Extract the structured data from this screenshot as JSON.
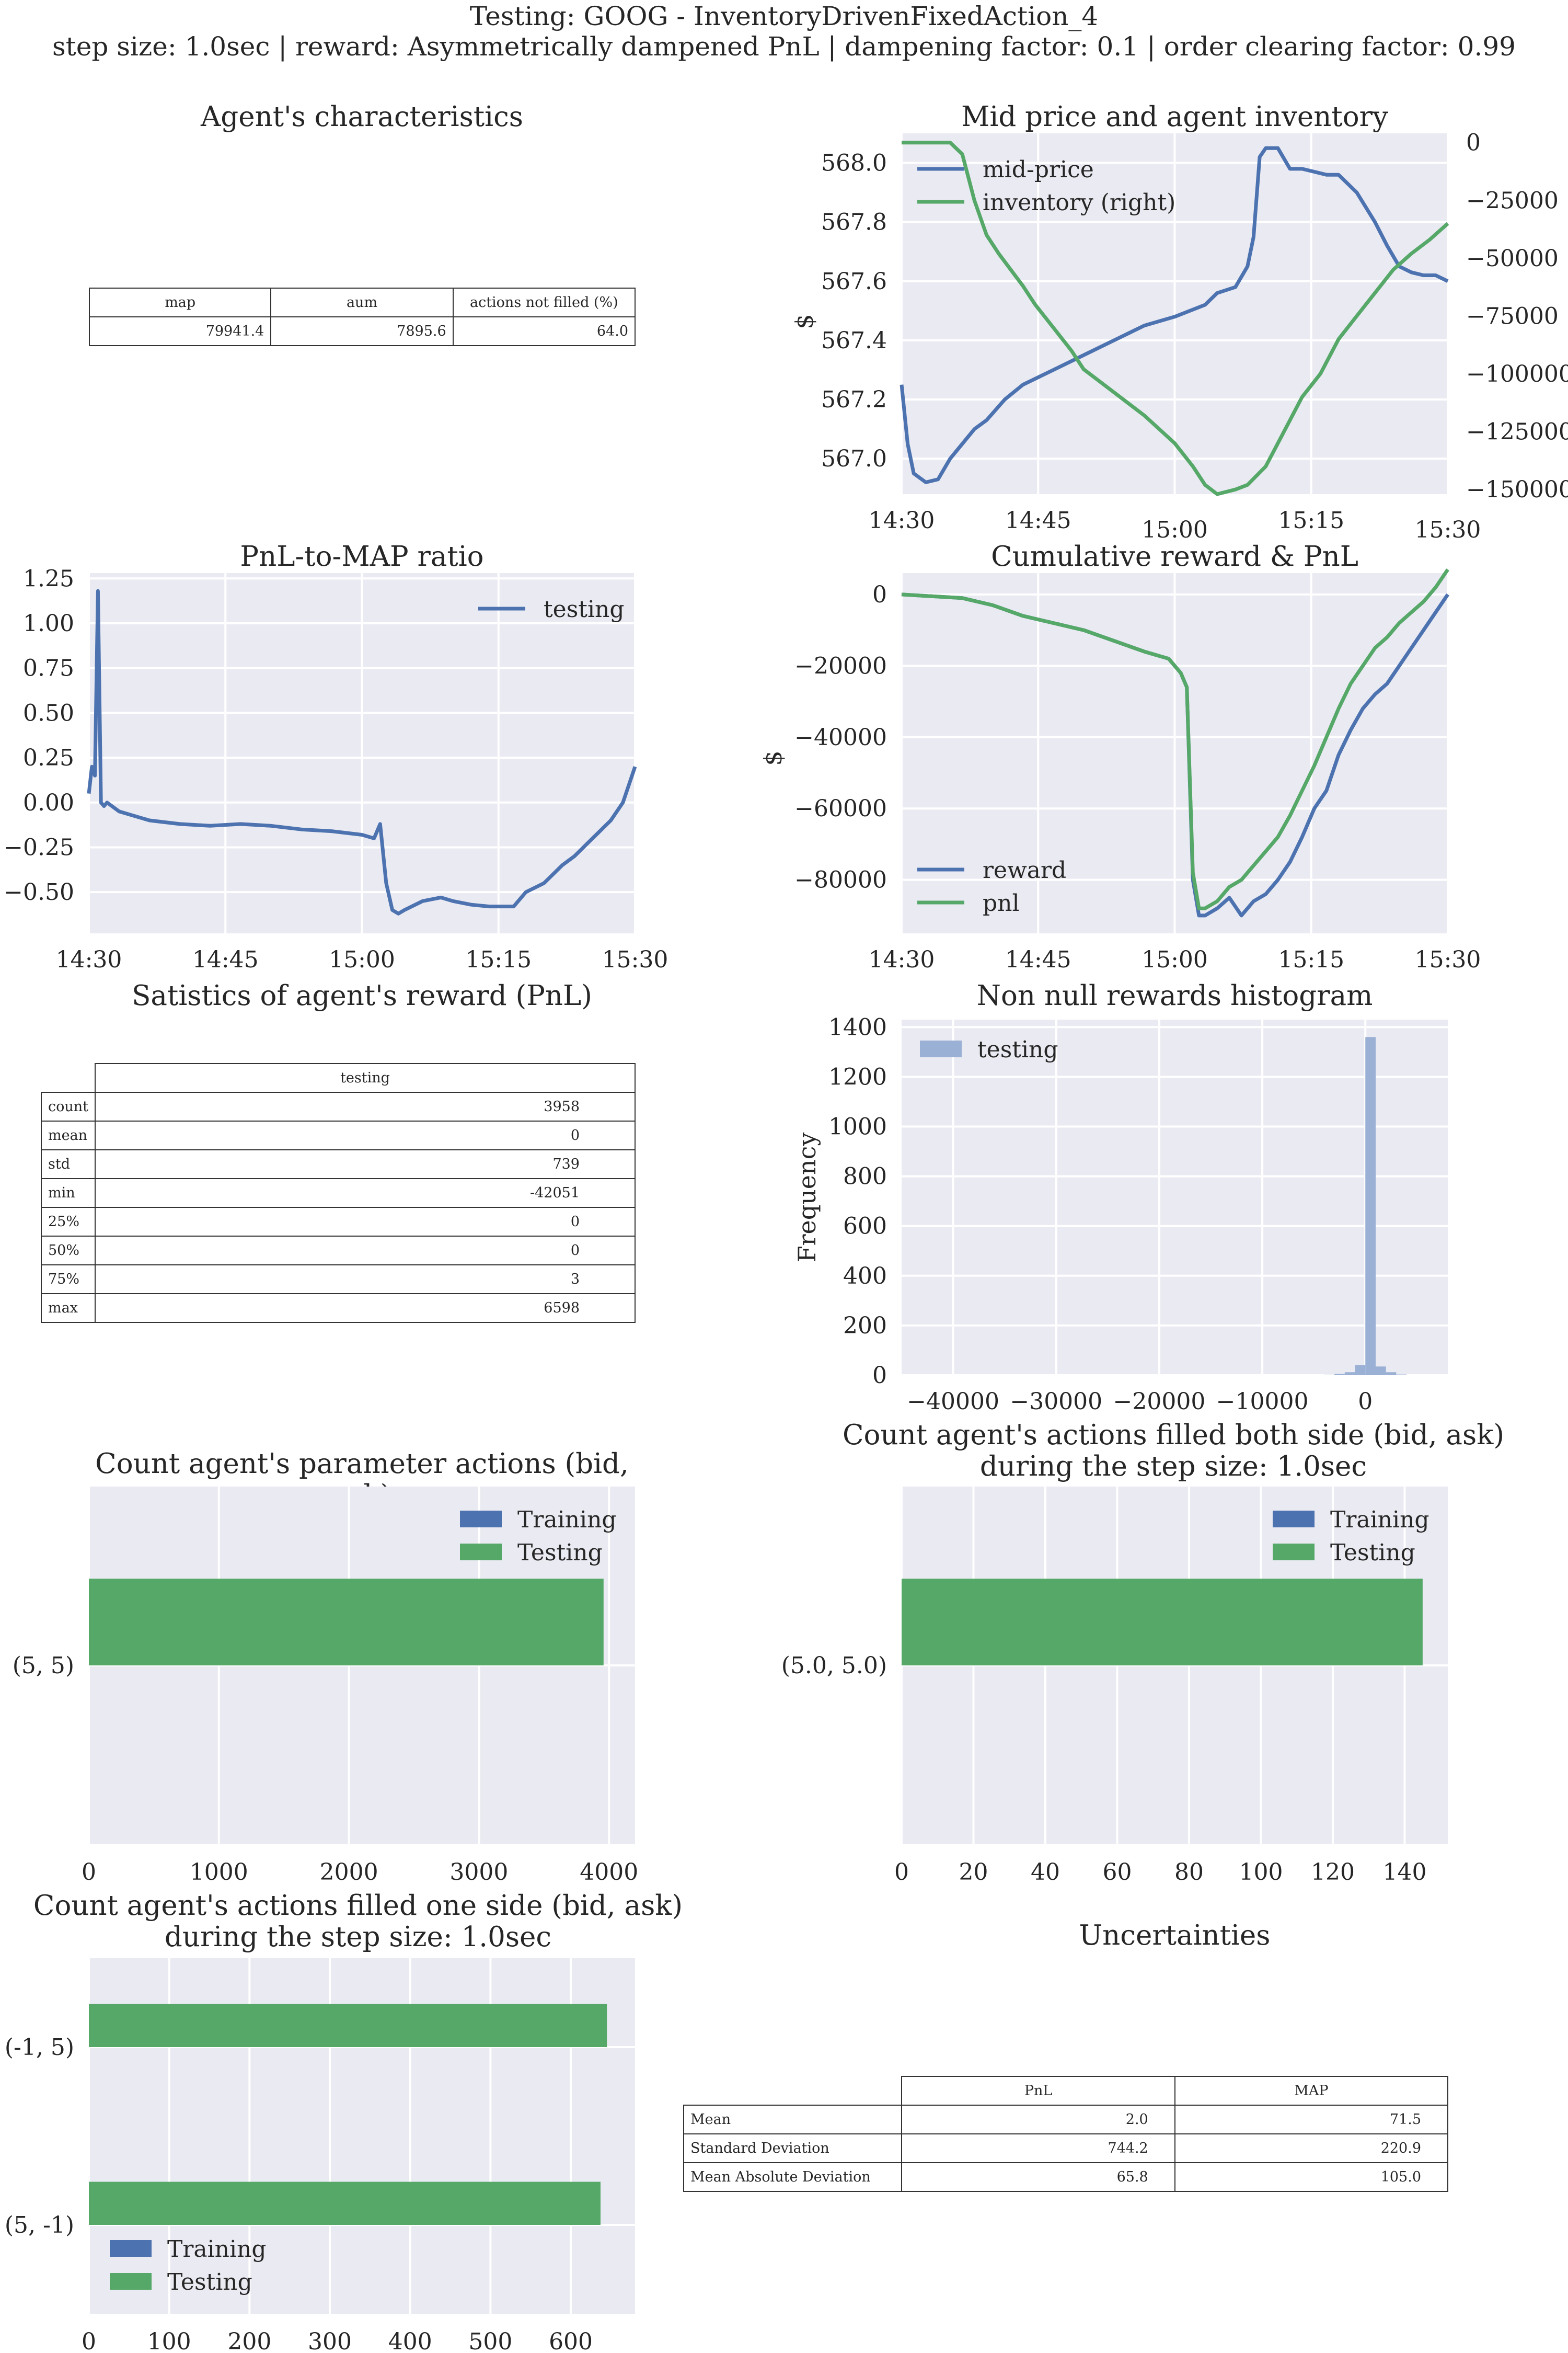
{
  "header": {
    "title": "Testing: GOOG - InventoryDrivenFixedAction_4",
    "subtitle": "step size: 1.0sec | reward: Asymmetrically dampened PnL | dampening factor: 0.1  | order clearing factor: 0.99"
  },
  "agent_characteristics": {
    "title": "Agent's characteristics",
    "columns": [
      "map",
      "aum",
      "actions not filled (%)"
    ],
    "values": [
      "79941.4",
      "7895.6",
      "64.0"
    ]
  },
  "reward_stats": {
    "title": "Satistics of agent's reward (PnL)",
    "column": "testing",
    "rows": [
      {
        "label": "count",
        "value": "3958"
      },
      {
        "label": "mean",
        "value": "0"
      },
      {
        "label": "std",
        "value": "739"
      },
      {
        "label": "min",
        "value": "-42051"
      },
      {
        "label": "25%",
        "value": "0"
      },
      {
        "label": "50%",
        "value": "0"
      },
      {
        "label": "75%",
        "value": "3"
      },
      {
        "label": "max",
        "value": "6598"
      }
    ]
  },
  "uncertainties": {
    "title": "Uncertainties",
    "columns": [
      "PnL",
      "MAP"
    ],
    "rows": [
      {
        "label": "Mean",
        "pnl": "2.0",
        "map": "71.5"
      },
      {
        "label": "Standard Deviation",
        "pnl": "744.2",
        "map": "220.9"
      },
      {
        "label": "Mean Absolute Deviation",
        "pnl": "65.8",
        "map": "105.0"
      }
    ]
  },
  "colors": {
    "blue": "#4c72b0",
    "green": "#55a868",
    "hist": "#9ab0d4",
    "axes_bg": "#eaeaf2",
    "grid": "#ffffff"
  },
  "chart_data": [
    {
      "id": "mid_price",
      "type": "line",
      "title": "Mid price and agent inventory",
      "xlabel": "",
      "ylabel": "$",
      "x_ticks": [
        "14:30",
        "14:45",
        "15:00",
        "15:15",
        "15:30"
      ],
      "ylim": [
        566.88,
        568.1
      ],
      "y_ticks": [
        "567.0",
        "567.2",
        "567.4",
        "567.6",
        "567.8",
        "568.0"
      ],
      "y2lim": [
        -152000,
        4000
      ],
      "y2_ticks": [
        "0",
        "−25000",
        "−50000",
        "−75000",
        "−100000",
        "−125000",
        "−150000"
      ],
      "legend": "top-left",
      "series": [
        {
          "name": "mid-price",
          "axis": "left",
          "x": [
            0,
            1,
            2,
            4,
            6,
            8,
            10,
            12,
            14,
            17,
            20,
            25,
            30,
            35,
            40,
            45,
            50,
            52,
            55,
            57,
            58,
            59,
            60,
            62,
            64,
            66,
            68,
            70,
            72,
            75,
            78,
            80,
            82,
            84,
            86,
            88,
            90
          ],
          "y": [
            567.25,
            567.05,
            566.95,
            566.92,
            566.93,
            567.0,
            567.05,
            567.1,
            567.13,
            567.2,
            567.25,
            567.3,
            567.35,
            567.4,
            567.45,
            567.48,
            567.52,
            567.56,
            567.58,
            567.65,
            567.75,
            568.02,
            568.05,
            568.05,
            567.98,
            567.98,
            567.97,
            567.96,
            567.96,
            567.9,
            567.8,
            567.72,
            567.65,
            567.63,
            567.62,
            567.62,
            567.6
          ]
        },
        {
          "name": "inventory (right)",
          "axis": "right",
          "x": [
            0,
            3,
            5,
            8,
            10,
            12,
            14,
            16,
            18,
            20,
            22,
            25,
            28,
            30,
            35,
            40,
            45,
            48,
            50,
            52,
            55,
            57,
            60,
            63,
            66,
            69,
            72,
            75,
            78,
            81,
            84,
            87,
            90
          ],
          "y": [
            0,
            0,
            0,
            0,
            -5000,
            -25000,
            -40000,
            -48000,
            -55000,
            -62000,
            -70000,
            -80000,
            -90000,
            -98000,
            -108000,
            -118000,
            -130000,
            -140000,
            -148000,
            -152000,
            -150000,
            -148000,
            -140000,
            -125000,
            -110000,
            -100000,
            -85000,
            -75000,
            -65000,
            -55000,
            -48000,
            -42000,
            -35000
          ]
        }
      ]
    },
    {
      "id": "pnl_to_map",
      "type": "line",
      "title": "PnL-to-MAP ratio",
      "xlabel": "",
      "ylabel": "",
      "x_ticks": [
        "14:30",
        "14:45",
        "15:00",
        "15:15",
        "15:30"
      ],
      "ylim": [
        -0.73,
        1.28
      ],
      "y_ticks": [
        "1.25",
        "1.00",
        "0.75",
        "0.50",
        "0.25",
        "0.00",
        "−0.25",
        "−0.50"
      ],
      "legend": "top-right",
      "series": [
        {
          "name": "testing",
          "x": [
            0,
            0.5,
            1,
            1.5,
            2,
            2.5,
            3,
            5,
            8,
            10,
            15,
            20,
            25,
            30,
            35,
            40,
            45,
            47,
            48,
            49,
            50,
            51,
            52,
            55,
            58,
            60,
            63,
            66,
            70,
            72,
            75,
            78,
            80,
            83,
            86,
            88,
            90
          ],
          "y": [
            0.05,
            0.2,
            0.15,
            1.18,
            0.0,
            -0.02,
            0.0,
            -0.05,
            -0.08,
            -0.1,
            -0.12,
            -0.13,
            -0.12,
            -0.13,
            -0.15,
            -0.16,
            -0.18,
            -0.2,
            -0.12,
            -0.45,
            -0.6,
            -0.62,
            -0.6,
            -0.55,
            -0.53,
            -0.55,
            -0.57,
            -0.58,
            -0.58,
            -0.5,
            -0.45,
            -0.35,
            -0.3,
            -0.2,
            -0.1,
            0.0,
            0.2
          ]
        }
      ]
    },
    {
      "id": "cum_reward",
      "type": "line",
      "title": "Cumulative reward & PnL",
      "xlabel": "",
      "ylabel": "$",
      "x_ticks": [
        "14:30",
        "14:45",
        "15:00",
        "15:15",
        "15:30"
      ],
      "ylim": [
        -95000,
        6000
      ],
      "y_ticks": [
        "0",
        "−20000",
        "−40000",
        "−60000",
        "−80000"
      ],
      "legend": "bottom-left",
      "series": [
        {
          "name": "reward",
          "x": [
            0,
            10,
            15,
            20,
            25,
            30,
            35,
            40,
            44,
            46,
            47,
            48,
            49,
            50,
            52,
            54,
            56,
            58,
            60,
            62,
            64,
            66,
            68,
            70,
            72,
            74,
            76,
            78,
            80,
            82,
            84,
            86,
            88,
            90
          ],
          "y": [
            0,
            -1000,
            -3000,
            -6000,
            -8000,
            -10000,
            -13000,
            -16000,
            -18000,
            -22000,
            -26000,
            -80000,
            -90000,
            -90000,
            -88000,
            -85000,
            -90000,
            -86000,
            -84000,
            -80000,
            -75000,
            -68000,
            -60000,
            -55000,
            -45000,
            -38000,
            -32000,
            -28000,
            -25000,
            -20000,
            -15000,
            -10000,
            -5000,
            0
          ]
        },
        {
          "name": "pnl",
          "x": [
            0,
            10,
            15,
            20,
            25,
            30,
            35,
            40,
            44,
            46,
            47,
            48,
            49,
            50,
            52,
            54,
            56,
            58,
            60,
            62,
            64,
            66,
            68,
            70,
            72,
            74,
            76,
            78,
            80,
            82,
            84,
            86,
            88,
            90
          ],
          "y": [
            0,
            -1000,
            -3000,
            -6000,
            -8000,
            -10000,
            -13000,
            -16000,
            -18000,
            -22000,
            -26000,
            -78000,
            -88000,
            -88000,
            -86000,
            -82000,
            -80000,
            -76000,
            -72000,
            -68000,
            -62000,
            -55000,
            -48000,
            -40000,
            -32000,
            -25000,
            -20000,
            -15000,
            -12000,
            -8000,
            -5000,
            -2000,
            2000,
            7000
          ]
        }
      ]
    },
    {
      "id": "reward_hist",
      "type": "bar",
      "title": "Non null rewards histogram",
      "xlabel": "",
      "ylabel": "Frequency",
      "xlim": [
        -45000,
        8000
      ],
      "x_ticks": [
        "−40000",
        "−30000",
        "−20000",
        "−10000",
        "0"
      ],
      "ylim": [
        0,
        1430
      ],
      "y_ticks": [
        "1400",
        "1200",
        "1000",
        "800",
        "600",
        "400",
        "200",
        "0"
      ],
      "legend": "top-left",
      "series": [
        {
          "name": "testing",
          "bins": [
            -4000,
            -3000,
            -2000,
            -1000,
            0,
            1000,
            2000,
            3000
          ],
          "values": [
            2,
            5,
            12,
            40,
            1360,
            35,
            12,
            3
          ],
          "bin_width": 1000
        }
      ]
    },
    {
      "id": "param_actions",
      "type": "bar",
      "orientation": "horizontal",
      "title": "Count agent's parameter actions (bid, ask)",
      "xlabel": "",
      "ylabel": "",
      "categories": [
        "(5, 5)"
      ],
      "xlim": [
        0,
        4200
      ],
      "x_ticks": [
        "0",
        "1000",
        "2000",
        "3000",
        "4000"
      ],
      "legend": "top-right",
      "series": [
        {
          "name": "Training",
          "values": [
            0
          ]
        },
        {
          "name": "Testing",
          "values": [
            3958
          ]
        }
      ]
    },
    {
      "id": "filled_both",
      "type": "bar",
      "orientation": "horizontal",
      "title": "Count agent's actions filled both side (bid, ask)\nduring the step size: 1.0sec",
      "xlabel": "",
      "ylabel": "",
      "categories": [
        "(5.0, 5.0)"
      ],
      "xlim": [
        0,
        152
      ],
      "x_ticks": [
        "0",
        "20",
        "40",
        "60",
        "80",
        "100",
        "120",
        "140"
      ],
      "legend": "top-right",
      "series": [
        {
          "name": "Training",
          "values": [
            0
          ]
        },
        {
          "name": "Testing",
          "values": [
            145
          ]
        }
      ]
    },
    {
      "id": "filled_one",
      "type": "bar",
      "orientation": "horizontal",
      "title": "Count agent's actions filled one side (bid, ask)\nduring the step size: 1.0sec",
      "xlabel": "",
      "ylabel": "",
      "categories": [
        "(-1, 5)",
        "(5, -1)"
      ],
      "xlim": [
        0,
        680
      ],
      "x_ticks": [
        "0",
        "100",
        "200",
        "300",
        "400",
        "500",
        "600"
      ],
      "legend": "bottom-left",
      "series": [
        {
          "name": "Training",
          "values": [
            0,
            0
          ]
        },
        {
          "name": "Testing",
          "values": [
            645,
            637
          ]
        }
      ]
    }
  ]
}
